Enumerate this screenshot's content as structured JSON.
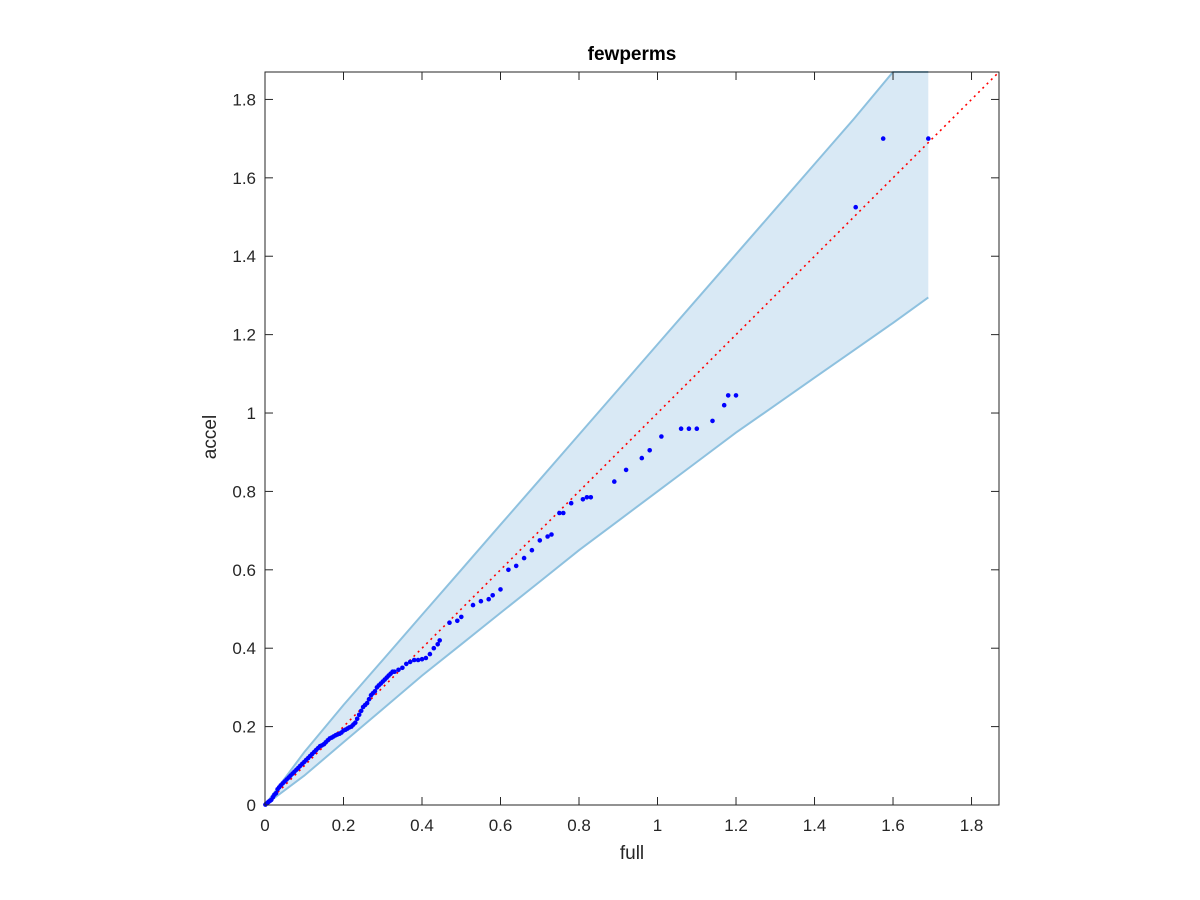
{
  "chart_data": {
    "type": "scatter",
    "title": "fewperms",
    "xlabel": "full",
    "ylabel": "accel",
    "xlim": [
      0,
      1.87
    ],
    "ylim": [
      0,
      1.87
    ],
    "xticks": [
      0,
      0.2,
      0.4,
      0.6,
      0.8,
      1,
      1.2,
      1.4,
      1.6,
      1.8
    ],
    "yticks": [
      0,
      0.2,
      0.4,
      0.6,
      0.8,
      1,
      1.2,
      1.4,
      1.6,
      1.8
    ],
    "xtick_labels": [
      "0",
      "0.2",
      "0.4",
      "0.6",
      "0.8",
      "1",
      "1.2",
      "1.4",
      "1.6",
      "1.8"
    ],
    "ytick_labels": [
      "0",
      "0.2",
      "0.4",
      "0.6",
      "0.8",
      "1",
      "1.2",
      "1.4",
      "1.6",
      "1.8"
    ],
    "grid": false,
    "colors": {
      "points": "#0000ff",
      "reference_line": "#ff0000",
      "band_fill": "#d9e9f5",
      "band_edge": "#8ec1df",
      "axes": "#262626"
    },
    "reference_line": {
      "style": "dotted",
      "x": [
        0,
        1.87
      ],
      "y": [
        0,
        1.87
      ]
    },
    "band": {
      "x": [
        0,
        0.1,
        0.2,
        0.3,
        0.4,
        0.5,
        0.6,
        0.7,
        0.8,
        0.9,
        1.0,
        1.1,
        1.2,
        1.3,
        1.4,
        1.5,
        1.6,
        1.69
      ],
      "upper": [
        0,
        0.135,
        0.255,
        0.37,
        0.485,
        0.6,
        0.715,
        0.83,
        0.945,
        1.06,
        1.175,
        1.29,
        1.405,
        1.52,
        1.635,
        1.75,
        1.87,
        1.87
      ],
      "lower": [
        0,
        0.075,
        0.16,
        0.245,
        0.33,
        0.41,
        0.49,
        0.57,
        0.65,
        0.725,
        0.8,
        0.875,
        0.95,
        1.02,
        1.09,
        1.16,
        1.23,
        1.295
      ]
    },
    "series": [
      {
        "x": [
          0.001,
          0.003,
          0.005,
          0.008,
          0.01,
          0.013,
          0.016,
          0.02,
          0.024,
          0.028,
          0.032,
          0.036,
          0.04,
          0.045,
          0.05,
          0.055,
          0.06,
          0.065,
          0.07,
          0.075,
          0.08,
          0.085,
          0.09,
          0.095,
          0.1,
          0.105,
          0.11,
          0.115,
          0.12,
          0.125,
          0.13,
          0.135,
          0.14,
          0.145,
          0.15,
          0.155,
          0.16,
          0.165,
          0.17,
          0.175,
          0.18,
          0.185,
          0.19,
          0.195,
          0.2,
          0.205,
          0.21,
          0.215,
          0.22,
          0.225,
          0.23,
          0.235,
          0.24,
          0.245,
          0.25,
          0.255,
          0.26,
          0.265,
          0.27,
          0.275,
          0.28,
          0.285,
          0.29,
          0.295,
          0.3,
          0.305,
          0.31,
          0.315,
          0.32,
          0.325,
          0.33,
          0.34,
          0.35,
          0.36,
          0.37,
          0.38,
          0.39,
          0.4,
          0.41,
          0.42,
          0.43,
          0.44,
          0.445,
          0.47,
          0.49,
          0.5,
          0.53,
          0.55,
          0.57,
          0.58,
          0.6,
          0.62,
          0.64,
          0.66,
          0.68,
          0.7,
          0.72,
          0.73,
          0.75,
          0.76,
          0.78,
          0.81,
          0.82,
          0.83,
          0.89,
          0.92,
          0.96,
          0.98,
          1.01,
          1.06,
          1.08,
          1.1,
          1.14,
          1.17,
          1.18,
          1.2,
          1.505,
          1.575,
          1.69
        ],
        "y": [
          0.001,
          0.003,
          0.004,
          0.007,
          0.009,
          0.011,
          0.013,
          0.02,
          0.026,
          0.03,
          0.04,
          0.045,
          0.05,
          0.055,
          0.06,
          0.065,
          0.07,
          0.075,
          0.08,
          0.085,
          0.09,
          0.095,
          0.1,
          0.105,
          0.11,
          0.115,
          0.12,
          0.125,
          0.13,
          0.135,
          0.14,
          0.145,
          0.15,
          0.152,
          0.155,
          0.16,
          0.165,
          0.17,
          0.172,
          0.175,
          0.178,
          0.18,
          0.182,
          0.185,
          0.19,
          0.192,
          0.195,
          0.198,
          0.2,
          0.205,
          0.21,
          0.22,
          0.23,
          0.24,
          0.25,
          0.255,
          0.26,
          0.27,
          0.28,
          0.285,
          0.29,
          0.3,
          0.305,
          0.31,
          0.315,
          0.32,
          0.325,
          0.33,
          0.335,
          0.34,
          0.34,
          0.345,
          0.35,
          0.36,
          0.365,
          0.37,
          0.37,
          0.372,
          0.375,
          0.385,
          0.4,
          0.41,
          0.42,
          0.465,
          0.47,
          0.48,
          0.51,
          0.52,
          0.525,
          0.535,
          0.55,
          0.6,
          0.61,
          0.63,
          0.65,
          0.675,
          0.685,
          0.69,
          0.745,
          0.745,
          0.77,
          0.78,
          0.785,
          0.785,
          0.825,
          0.855,
          0.885,
          0.905,
          0.94,
          0.96,
          0.96,
          0.96,
          0.98,
          1.02,
          1.045,
          1.045,
          1.525,
          1.7,
          1.7
        ]
      }
    ]
  }
}
